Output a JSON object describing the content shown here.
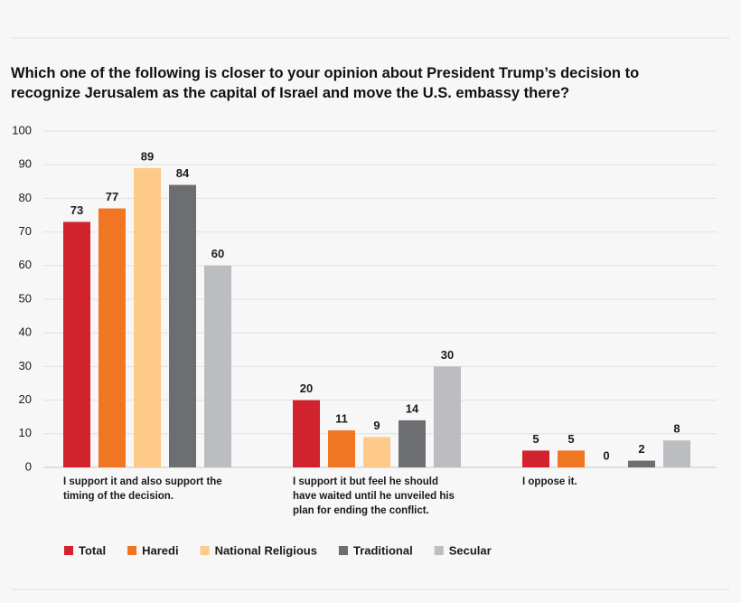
{
  "chart_data": {
    "type": "bar",
    "title": "Which one of the following is closer to your opinion about President Trump’s decision to recognize Jerusalem as the capital of Israel and move the U.S. embassy there?",
    "categories": [
      "I support it and also support the timing of the decision.",
      "I support it but feel he should have waited until he unveiled his plan for ending the conflict.",
      "I oppose it."
    ],
    "series": [
      {
        "name": "Total",
        "color": "#d1232e",
        "values": [
          73,
          20,
          5
        ]
      },
      {
        "name": "Haredi",
        "color": "#f07623",
        "values": [
          77,
          11,
          5
        ]
      },
      {
        "name": "National Religious",
        "color": "#fdca8a",
        "values": [
          89,
          9,
          0
        ]
      },
      {
        "name": "Traditional",
        "color": "#6d6e71",
        "values": [
          84,
          14,
          2
        ]
      },
      {
        "name": "Secular",
        "color": "#bcbdc0",
        "values": [
          60,
          30,
          8
        ]
      }
    ],
    "ylim": [
      0,
      100
    ],
    "yticks": [
      0,
      10,
      20,
      30,
      40,
      50,
      60,
      70,
      80,
      90,
      100
    ],
    "grid": true,
    "legend": "bottom"
  }
}
